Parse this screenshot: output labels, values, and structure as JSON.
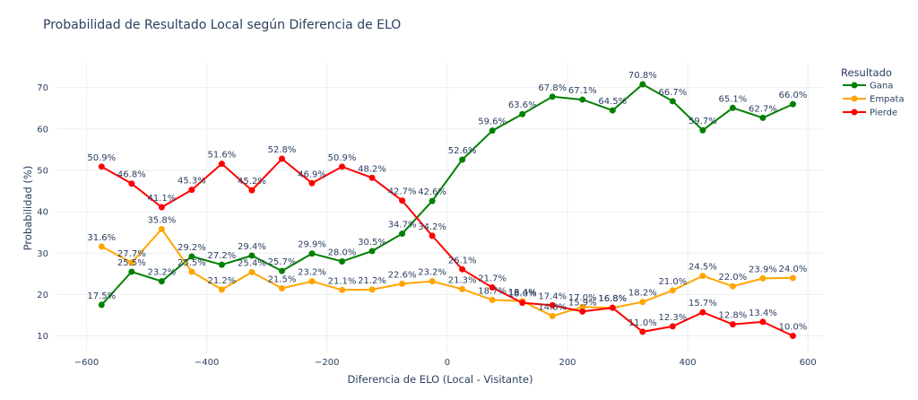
{
  "chart_data": {
    "type": "line",
    "title": "Probabilidad de Resultado Local según Diferencia de ELO",
    "xlabel": "Diferencia de ELO (Local - Visitante)",
    "ylabel": "Probabilidad (%)",
    "xlim": [
      -650,
      625
    ],
    "ylim": [
      6,
      76
    ],
    "xticks": [
      -600,
      -400,
      -200,
      0,
      200,
      400,
      600
    ],
    "xtick_labels": [
      "−600",
      "−400",
      "−200",
      "0",
      "200",
      "400",
      "600"
    ],
    "yticks": [
      10,
      20,
      30,
      40,
      50,
      60,
      70
    ],
    "yticks_labels": [
      "10",
      "20",
      "30",
      "40",
      "50",
      "60",
      "70"
    ],
    "grid": true,
    "legend": {
      "title": "Resultado",
      "position": "top-right"
    },
    "x": [
      -575,
      -525,
      -475,
      -425,
      -375,
      -325,
      -275,
      -225,
      -175,
      -125,
      -75,
      -25,
      25,
      75,
      125,
      175,
      225,
      275,
      325,
      375,
      425,
      475,
      525,
      575
    ],
    "series": [
      {
        "name": "Gana",
        "color": "#008000",
        "values": [
          17.5,
          25.5,
          23.2,
          29.2,
          27.2,
          29.4,
          25.7,
          29.9,
          28.0,
          30.5,
          34.7,
          42.6,
          52.6,
          59.6,
          63.6,
          67.8,
          67.1,
          64.5,
          70.8,
          66.7,
          59.7,
          65.1,
          62.7,
          66.0
        ],
        "labels": [
          "17.5%",
          "25.5%",
          "23.2%",
          "29.2%",
          "27.2%",
          "29.4%",
          "25.7%",
          "29.9%",
          "28.0%",
          "30.5%",
          "34.7%",
          "42.6%",
          "52.6%",
          "59.6%",
          "63.6%",
          "67.8%",
          "67.1%",
          "64.5%",
          "70.8%",
          "66.7%",
          "59.7%",
          "65.1%",
          "62.7%",
          "66.0%"
        ]
      },
      {
        "name": "Empata",
        "color": "#FFA500",
        "values": [
          31.6,
          27.7,
          35.8,
          25.5,
          21.2,
          25.4,
          21.5,
          23.2,
          21.1,
          21.2,
          22.6,
          23.2,
          21.3,
          18.7,
          18.4,
          14.8,
          17.0,
          16.8,
          18.2,
          21.0,
          24.5,
          22.0,
          23.9,
          24.0
        ],
        "labels": [
          "31.6%",
          "27.7%",
          "35.8%",
          "25.5%",
          "21.2%",
          "25.4%",
          "21.5%",
          "23.2%",
          "21.1%",
          "21.2%",
          "22.6%",
          "23.2%",
          "21.3%",
          "18.7%",
          "18.4%",
          "14.8%",
          "17.0%",
          "16.8%",
          "18.2%",
          "21.0%",
          "24.5%",
          "22.0%",
          "23.9%",
          "24.0%"
        ]
      },
      {
        "name": "Pierde",
        "color": "#FF0000",
        "values": [
          50.9,
          46.8,
          41.1,
          45.3,
          51.6,
          45.2,
          52.8,
          46.9,
          50.9,
          48.2,
          42.7,
          34.2,
          26.1,
          21.7,
          18.0,
          17.4,
          15.9,
          16.8,
          11.0,
          12.3,
          15.7,
          12.8,
          13.4,
          10.0
        ],
        "labels": [
          "50.9%",
          "46.8%",
          "41.1%",
          "45.3%",
          "51.6%",
          "45.2%",
          "52.8%",
          "46.9%",
          "50.9%",
          "48.2%",
          "42.7%",
          "34.2%",
          "26.1%",
          "21.7%",
          "18.0%",
          "17.4%",
          "15.9%",
          "16.8%",
          "11.0%",
          "12.3%",
          "15.7%",
          "12.8%",
          "13.4%",
          "10.0%"
        ]
      }
    ]
  }
}
